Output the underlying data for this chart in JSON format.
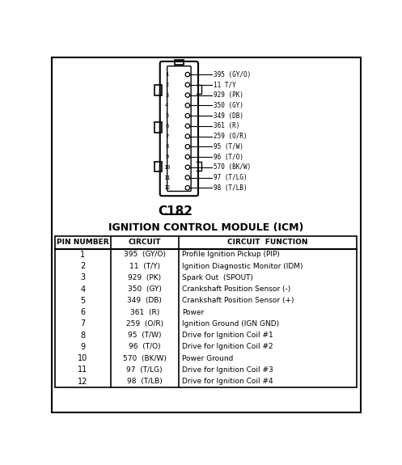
{
  "title_connector": "C182",
  "title_module": "IGNITION CONTROL MODULE (ICM)",
  "bg_color": "#ffffff",
  "border_color": "#000000",
  "pins": [
    1,
    2,
    3,
    4,
    5,
    6,
    7,
    8,
    9,
    10,
    11,
    12
  ],
  "circuits": [
    "395  (GY/O)",
    "11  (T/Y)",
    "929  (PK)",
    "350  (GY)",
    "349  (DB)",
    "361  (R)",
    "259  (O/R)",
    "95  (T/W)",
    "96  (T/O)",
    "570  (BK/W)",
    "97  (T/LG)",
    "98  (T/LB)"
  ],
  "functions": [
    "Profile Ignition Pickup (PIP)",
    "Ignition Diagnostic Monitor (IDM)",
    "Spark Out  (SPOUT)",
    "Crankshaft Position Sensor (-)",
    "Crankshaft Position Sensor (+)",
    "Power",
    "Ignition Ground (IGN GND)",
    "Drive for Ignition Coil #1",
    "Drive for Ignition Coil #2",
    "Power Ground",
    "Drive for Ignition Coil #3",
    "Drive for Ignition Coil #4"
  ],
  "col_headers": [
    "PIN NUMBER",
    "CIRCUIT",
    "CIRCUIT  FUNCTION"
  ],
  "diagram_labels_right": [
    "395 (GY/O)",
    "11 T/Y",
    "929 (PK)",
    "350 (GY)",
    "349 (DB)",
    "361 (R)",
    "259 (O/R)",
    "95 (T/W)",
    "96 (T/O)",
    "570 (BK/W)",
    "97 (T/LG)",
    "98 (T/LB)"
  ]
}
